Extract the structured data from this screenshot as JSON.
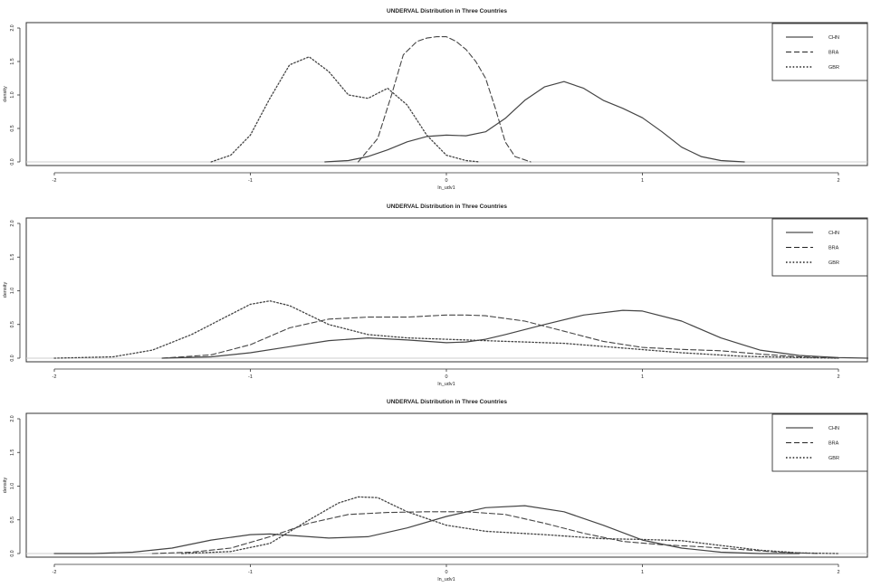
{
  "chart_data": [
    {
      "type": "line",
      "title": "UNDERVAL Distribution in Three Countries",
      "xlabel": "ln_udv1",
      "ylabel": "density",
      "xlim": [
        -2,
        2
      ],
      "ylim": [
        0,
        2.0
      ],
      "x_ticks": [
        "-2",
        "-1",
        "0",
        "1",
        "2"
      ],
      "y_ticks": [
        "0.0",
        "0.5",
        "1.0",
        "1.5",
        "2.0"
      ],
      "legend_position": "top-right",
      "series": [
        {
          "name": "CHN",
          "style": "solid",
          "color": "#444444",
          "x": [
            -0.62,
            -0.5,
            -0.4,
            -0.3,
            -0.2,
            -0.1,
            0.0,
            0.1,
            0.2,
            0.3,
            0.4,
            0.5,
            0.6,
            0.7,
            0.8,
            0.9,
            1.0,
            1.1,
            1.2,
            1.3,
            1.4,
            1.52
          ],
          "y": [
            0.0,
            0.02,
            0.08,
            0.18,
            0.3,
            0.38,
            0.4,
            0.39,
            0.45,
            0.65,
            0.92,
            1.12,
            1.2,
            1.1,
            0.92,
            0.8,
            0.66,
            0.45,
            0.22,
            0.08,
            0.02,
            0.0
          ]
        },
        {
          "name": "BRA",
          "style": "dashed",
          "color": "#444444",
          "x": [
            -0.45,
            -0.35,
            -0.28,
            -0.22,
            -0.15,
            -0.1,
            -0.05,
            0.0,
            0.05,
            0.1,
            0.15,
            0.2,
            0.25,
            0.3,
            0.35,
            0.43
          ],
          "y": [
            0.0,
            0.35,
            1.0,
            1.6,
            1.8,
            1.85,
            1.87,
            1.87,
            1.8,
            1.68,
            1.5,
            1.25,
            0.8,
            0.3,
            0.08,
            0.0
          ]
        },
        {
          "name": "GBR",
          "style": "dotted",
          "color": "#444444",
          "x": [
            -1.2,
            -1.1,
            -1.0,
            -0.9,
            -0.8,
            -0.7,
            -0.6,
            -0.5,
            -0.4,
            -0.3,
            -0.2,
            -0.1,
            0.0,
            0.1,
            0.17
          ],
          "y": [
            0.0,
            0.1,
            0.4,
            0.95,
            1.45,
            1.57,
            1.35,
            1.0,
            0.95,
            1.1,
            0.85,
            0.4,
            0.1,
            0.02,
            0.0
          ]
        }
      ]
    },
    {
      "type": "line",
      "title": "UNDERVAL Distribution in Three Countries",
      "xlabel": "ln_udv1",
      "ylabel": "density",
      "xlim": [
        -2,
        2
      ],
      "ylim": [
        0,
        2.0
      ],
      "x_ticks": [
        "-2",
        "-1",
        "0",
        "1",
        "2"
      ],
      "y_ticks": [
        "0.0",
        "0.5",
        "1.0",
        "1.5",
        "2.0"
      ],
      "legend_position": "top-right",
      "series": [
        {
          "name": "CHN",
          "style": "solid",
          "color": "#444444",
          "x": [
            -1.45,
            -1.2,
            -1.0,
            -0.8,
            -0.6,
            -0.4,
            -0.2,
            0.0,
            0.1,
            0.2,
            0.3,
            0.5,
            0.7,
            0.9,
            1.0,
            1.2,
            1.4,
            1.6,
            1.8,
            2.0,
            2.15
          ],
          "y": [
            0.0,
            0.02,
            0.08,
            0.17,
            0.26,
            0.3,
            0.27,
            0.23,
            0.24,
            0.28,
            0.35,
            0.5,
            0.64,
            0.71,
            0.7,
            0.55,
            0.3,
            0.12,
            0.04,
            0.01,
            0.0
          ]
        },
        {
          "name": "BRA",
          "style": "dashed",
          "color": "#444444",
          "x": [
            -1.45,
            -1.2,
            -1.0,
            -0.8,
            -0.6,
            -0.4,
            -0.2,
            0.0,
            0.1,
            0.2,
            0.4,
            0.6,
            0.8,
            1.0,
            1.2,
            1.4,
            1.6,
            1.8,
            2.0
          ],
          "y": [
            0.0,
            0.05,
            0.2,
            0.45,
            0.58,
            0.61,
            0.61,
            0.64,
            0.64,
            0.63,
            0.55,
            0.4,
            0.25,
            0.16,
            0.13,
            0.11,
            0.06,
            0.02,
            0.0
          ]
        },
        {
          "name": "GBR",
          "style": "dotted",
          "color": "#444444",
          "x": [
            -2.0,
            -1.7,
            -1.5,
            -1.3,
            -1.1,
            -1.0,
            -0.9,
            -0.8,
            -0.6,
            -0.4,
            -0.2,
            0.0,
            0.3,
            0.6,
            0.9,
            1.2,
            1.5,
            1.8,
            2.0
          ],
          "y": [
            0.0,
            0.02,
            0.12,
            0.35,
            0.65,
            0.8,
            0.85,
            0.78,
            0.5,
            0.35,
            0.3,
            0.28,
            0.25,
            0.22,
            0.15,
            0.08,
            0.03,
            0.01,
            0.0
          ]
        }
      ]
    },
    {
      "type": "line",
      "title": "UNDERVAL Distribution in Three Countries",
      "xlabel": "ln_udv1",
      "ylabel": "density",
      "xlim": [
        -2,
        2
      ],
      "ylim": [
        0,
        2.0
      ],
      "x_ticks": [
        "-2",
        "-1",
        "0",
        "1",
        "2"
      ],
      "y_ticks": [
        "0.0",
        "0.5",
        "1.0",
        "1.5",
        "2.0"
      ],
      "legend_position": "top-right",
      "series": [
        {
          "name": "CHN",
          "style": "solid",
          "color": "#444444",
          "x": [
            -2.0,
            -1.8,
            -1.6,
            -1.4,
            -1.2,
            -1.0,
            -0.9,
            -0.8,
            -0.6,
            -0.4,
            -0.2,
            0.0,
            0.2,
            0.4,
            0.6,
            0.8,
            1.0,
            1.2,
            1.4,
            1.6,
            1.8
          ],
          "y": [
            0.0,
            0.0,
            0.02,
            0.08,
            0.2,
            0.28,
            0.29,
            0.27,
            0.23,
            0.25,
            0.38,
            0.55,
            0.68,
            0.71,
            0.62,
            0.42,
            0.2,
            0.08,
            0.02,
            0.0,
            0.0
          ]
        },
        {
          "name": "BRA",
          "style": "dashed",
          "color": "#444444",
          "x": [
            -1.5,
            -1.3,
            -1.1,
            -0.9,
            -0.7,
            -0.5,
            -0.3,
            -0.1,
            0.0,
            0.1,
            0.3,
            0.5,
            0.7,
            0.9,
            1.1,
            1.3,
            1.5,
            1.7,
            1.9
          ],
          "y": [
            0.0,
            0.02,
            0.08,
            0.25,
            0.45,
            0.58,
            0.61,
            0.62,
            0.62,
            0.62,
            0.58,
            0.45,
            0.3,
            0.18,
            0.13,
            0.1,
            0.06,
            0.02,
            0.0
          ]
        },
        {
          "name": "GBR",
          "style": "dotted",
          "color": "#444444",
          "x": [
            -1.35,
            -1.1,
            -0.9,
            -0.7,
            -0.55,
            -0.45,
            -0.35,
            -0.2,
            0.0,
            0.2,
            0.5,
            0.8,
            1.0,
            1.2,
            1.4,
            1.6,
            1.8,
            2.0
          ],
          "y": [
            0.0,
            0.03,
            0.15,
            0.5,
            0.75,
            0.84,
            0.83,
            0.62,
            0.42,
            0.33,
            0.28,
            0.22,
            0.21,
            0.19,
            0.12,
            0.05,
            0.01,
            0.0
          ]
        }
      ]
    }
  ]
}
